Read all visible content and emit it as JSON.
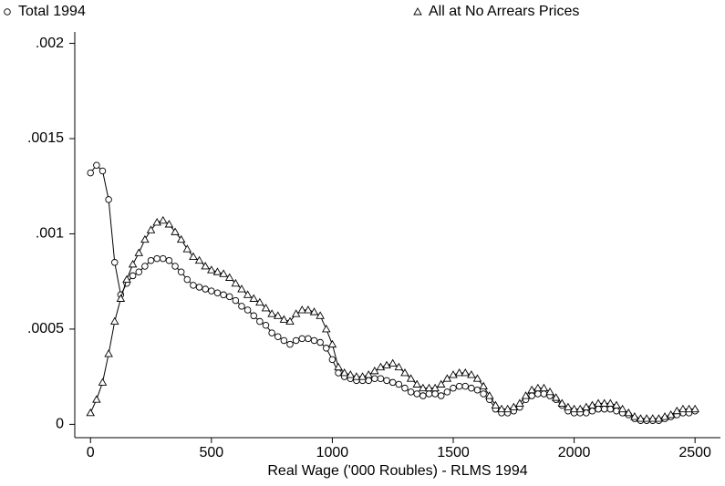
{
  "chart_data": {
    "type": "line",
    "xlabel": "Real Wage ('000 Roubles) - RLMS 1994",
    "x": [
      0,
      25,
      50,
      75,
      100,
      125,
      150,
      175,
      200,
      225,
      250,
      275,
      300,
      325,
      350,
      375,
      400,
      425,
      450,
      475,
      500,
      525,
      550,
      575,
      600,
      625,
      650,
      675,
      700,
      725,
      750,
      775,
      800,
      825,
      850,
      875,
      900,
      925,
      950,
      975,
      1000,
      1025,
      1050,
      1075,
      1100,
      1125,
      1150,
      1175,
      1200,
      1225,
      1250,
      1275,
      1300,
      1325,
      1350,
      1375,
      1400,
      1425,
      1450,
      1475,
      1500,
      1525,
      1550,
      1575,
      1600,
      1625,
      1650,
      1675,
      1700,
      1725,
      1750,
      1775,
      1800,
      1825,
      1850,
      1875,
      1900,
      1925,
      1950,
      1975,
      2000,
      2025,
      2050,
      2075,
      2100,
      2125,
      2150,
      2175,
      2200,
      2225,
      2250,
      2275,
      2300,
      2325,
      2350,
      2375,
      2400,
      2425,
      2450,
      2475,
      2500
    ],
    "series": [
      {
        "name": "Total 1994",
        "color": "#000000",
        "marker": "circle",
        "values": [
          0.00132,
          0.00136,
          0.00133,
          0.00118,
          0.00085,
          0.00068,
          0.00074,
          0.00078,
          0.0008,
          0.00083,
          0.00086,
          0.00087,
          0.00087,
          0.00086,
          0.00083,
          0.0008,
          0.00076,
          0.00073,
          0.00072,
          0.00071,
          0.0007,
          0.00069,
          0.00068,
          0.00067,
          0.00065,
          0.00062,
          0.0006,
          0.00057,
          0.00054,
          0.00052,
          0.00048,
          0.00046,
          0.00044,
          0.00042,
          0.00044,
          0.00045,
          0.00045,
          0.00044,
          0.00043,
          0.0004,
          0.00034,
          0.00027,
          0.00025,
          0.00024,
          0.00023,
          0.00023,
          0.00023,
          0.00024,
          0.00024,
          0.00023,
          0.00022,
          0.00021,
          0.00019,
          0.00017,
          0.00016,
          0.00015,
          0.00016,
          0.00016,
          0.00015,
          0.00017,
          0.00019,
          0.0002,
          0.0002,
          0.00019,
          0.00018,
          0.00016,
          0.00013,
          8e-05,
          6e-05,
          6e-05,
          7e-05,
          9e-05,
          0.00013,
          0.00015,
          0.00016,
          0.00016,
          0.00015,
          0.00013,
          0.0001,
          7e-05,
          6e-05,
          6e-05,
          6e-05,
          7e-05,
          8e-05,
          8e-05,
          8e-05,
          7e-05,
          6e-05,
          5e-05,
          3e-05,
          2e-05,
          2e-05,
          2e-05,
          2e-05,
          3e-05,
          4e-05,
          5e-05,
          6e-05,
          6e-05,
          7e-05
        ]
      },
      {
        "name": "All at No Arrears Prices",
        "color": "#000000",
        "marker": "triangle",
        "values": [
          6e-05,
          0.00013,
          0.00022,
          0.00037,
          0.00054,
          0.00066,
          0.00076,
          0.00084,
          0.0009,
          0.00097,
          0.00102,
          0.00106,
          0.00107,
          0.00105,
          0.00101,
          0.00097,
          0.00092,
          0.00088,
          0.00086,
          0.00083,
          0.00081,
          0.0008,
          0.00079,
          0.00077,
          0.00074,
          0.00071,
          0.00068,
          0.00066,
          0.00064,
          0.00061,
          0.00058,
          0.00057,
          0.00055,
          0.00054,
          0.00058,
          0.0006,
          0.0006,
          0.00059,
          0.00057,
          0.0005,
          0.00042,
          0.0003,
          0.00027,
          0.00026,
          0.00025,
          0.00025,
          0.00026,
          0.00028,
          0.0003,
          0.00031,
          0.00032,
          0.0003,
          0.00027,
          0.00024,
          0.00021,
          0.00019,
          0.00019,
          0.00019,
          0.00021,
          0.00024,
          0.00026,
          0.00027,
          0.00027,
          0.00026,
          0.00024,
          0.0002,
          0.00015,
          0.0001,
          8e-05,
          8e-05,
          9e-05,
          0.00011,
          0.00015,
          0.00018,
          0.00019,
          0.00019,
          0.00017,
          0.00014,
          0.00011,
          9e-05,
          8e-05,
          8e-05,
          9e-05,
          0.0001,
          0.00011,
          0.00011,
          0.00011,
          0.0001,
          8e-05,
          6e-05,
          4e-05,
          3e-05,
          3e-05,
          3e-05,
          3e-05,
          4e-05,
          5e-05,
          7e-05,
          8e-05,
          8e-05,
          8e-05
        ]
      }
    ],
    "xlim": [
      -65,
      2605
    ],
    "xticks": [
      0,
      500,
      1000,
      1500,
      2000,
      2500
    ],
    "ylim": [
      -7e-05,
      0.00206
    ],
    "yticks": [
      0,
      {
        "value": 0.0005,
        "label": ".0005"
      },
      {
        "value": 0.001,
        "label": ".001"
      },
      {
        "value": 0.0015,
        "label": ".0015"
      },
      {
        "value": 0.002,
        "label": ".002"
      }
    ],
    "grid": false
  }
}
